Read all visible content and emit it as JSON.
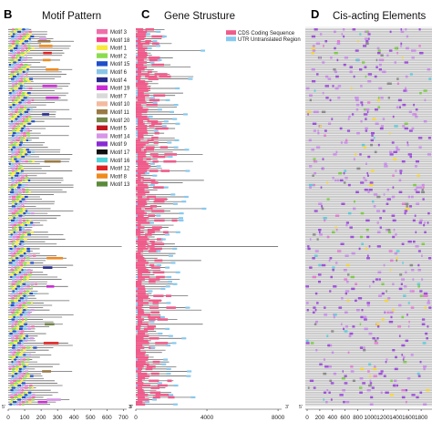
{
  "chart_data": [
    {
      "panel": "B",
      "title": "Motif Pattern",
      "type": "gene-structure-track",
      "x_ticks": [
        0,
        100,
        200,
        300,
        400,
        500,
        600,
        700
      ],
      "x_tick_labels": [
        "0",
        "100",
        "200",
        "300",
        "400",
        "500",
        "600",
        "700"
      ],
      "xlim": [
        0,
        720
      ],
      "end_labels": [
        "5'",
        "3'"
      ],
      "gene_count": 160,
      "legend": [
        {
          "name": "Motif 3",
          "color": "#f06eaa"
        },
        {
          "name": "Motif 18",
          "color": "#ef3f8f"
        },
        {
          "name": "Motif 1",
          "color": "#f7ea3b"
        },
        {
          "name": "Motif 2",
          "color": "#8bdc4d"
        },
        {
          "name": "Motif 15",
          "color": "#1f4fc9"
        },
        {
          "name": "Motif 6",
          "color": "#8ac5e8"
        },
        {
          "name": "Motif 4",
          "color": "#262a8c"
        },
        {
          "name": "Motif 19",
          "color": "#cc2ad6"
        },
        {
          "name": "Motif 7",
          "color": "#d9d9d9"
        },
        {
          "name": "Motif 10",
          "color": "#f4ba9f"
        },
        {
          "name": "Motif 11",
          "color": "#9a7a44"
        },
        {
          "name": "Motif 20",
          "color": "#74864a"
        },
        {
          "name": "Motif 5",
          "color": "#c0161f"
        },
        {
          "name": "Motif 14",
          "color": "#d794e8"
        },
        {
          "name": "Motif 9",
          "color": "#8a2ad6"
        },
        {
          "name": "Motif 17",
          "color": "#101010"
        },
        {
          "name": "Motif 16",
          "color": "#53d3d8"
        },
        {
          "name": "Motif 12",
          "color": "#e02222"
        },
        {
          "name": "Motif 8",
          "color": "#f08a1d"
        },
        {
          "name": "Motif 13",
          "color": "#5b8a3a"
        }
      ]
    },
    {
      "panel": "C",
      "title": "Gene Strusture",
      "type": "gene-structure-track",
      "x_ticks": [
        0,
        4000,
        8000
      ],
      "x_tick_labels": [
        "0",
        "4000",
        "8000"
      ],
      "xlim": [
        0,
        8200
      ],
      "end_labels": [
        "5'",
        "3'"
      ],
      "gene_count": 160,
      "legend": [
        {
          "name": "CDS Coding Sequence",
          "color": "#ef5b8a"
        },
        {
          "name": "UTR Untranslated Region",
          "color": "#86c9ef"
        }
      ]
    },
    {
      "panel": "D",
      "title": "Cis-acting Elements",
      "type": "gene-structure-track",
      "x_ticks": [
        0,
        200,
        400,
        600,
        800,
        1000,
        1200,
        1400,
        1600,
        1800
      ],
      "x_tick_labels": [
        "0",
        "200",
        "400",
        "600",
        "800",
        "1000",
        "1200",
        "1400",
        "1600",
        "1800"
      ],
      "xlim": [
        0,
        2000
      ],
      "end_labels": [
        "5'"
      ],
      "gene_count": 160,
      "element_colors": [
        "#9c4fd6",
        "#c68be6",
        "#e07ad0",
        "#7ec84a",
        "#f2d33a",
        "#5fc8d6",
        "#8a8a8a"
      ]
    }
  ]
}
